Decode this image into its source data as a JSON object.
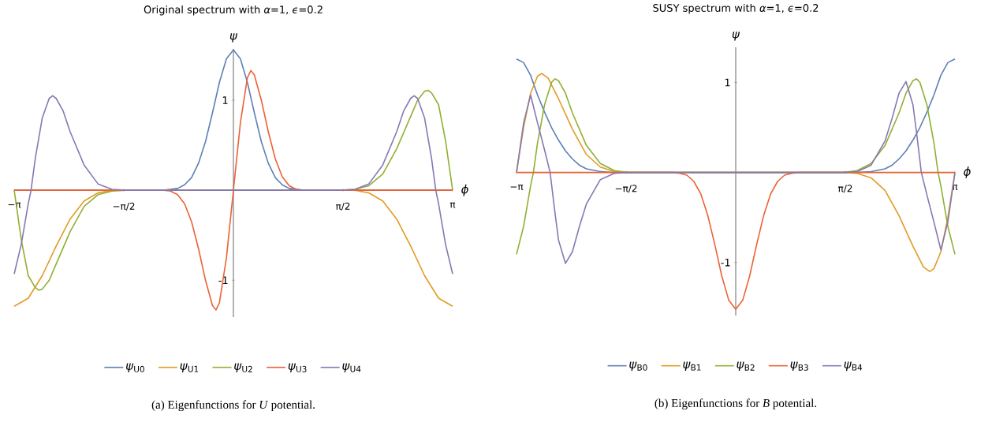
{
  "chart_data": [
    {
      "type": "line",
      "title": "Original spectrum with *α*=1, *ϵ*=0.2",
      "xlabel": "*ϕ*",
      "ylabel": "*ψ*",
      "xlim": [
        -3.1416,
        3.1416
      ],
      "ylim": [
        -1.41,
        1.57
      ],
      "xticks": [
        {
          "value": -3.1416,
          "label": "−π"
        },
        {
          "value": -1.5708,
          "label": "−π/2"
        },
        {
          "value": 1.5708,
          "label": "π/2"
        },
        {
          "value": 3.1416,
          "label": "π"
        }
      ],
      "yticks": [
        -1,
        1
      ],
      "legend": "bottom",
      "grid": false,
      "annotations": [
        "(a) Eigenfunctions for *U* potential."
      ],
      "series": [
        {
          "name": "*ψ*$_{U0}$",
          "color": "#5e81b5",
          "x": [
            -3.1416,
            -1.0,
            -0.8,
            -0.7,
            -0.6,
            -0.5,
            -0.4,
            -0.3,
            -0.2,
            -0.1,
            0,
            0.1,
            0.2,
            0.3,
            0.4,
            0.5,
            0.6,
            0.7,
            0.8,
            1.0,
            3.1416
          ],
          "values": [
            0,
            0,
            0.02,
            0.06,
            0.14,
            0.3,
            0.54,
            0.86,
            1.2,
            1.46,
            1.56,
            1.46,
            1.2,
            0.86,
            0.54,
            0.3,
            0.14,
            0.06,
            0.02,
            0,
            0
          ]
        },
        {
          "name": "*ψ*$_{U1}$",
          "color": "#e19c24",
          "x": [
            -3.1416,
            -2.94,
            -2.74,
            -2.54,
            -2.34,
            -2.14,
            -1.94,
            -1.74,
            1.74,
            1.94,
            2.14,
            2.34,
            2.54,
            2.74,
            2.94,
            3.1416
          ],
          "values": [
            -1.29,
            -1.2,
            -0.95,
            -0.62,
            -0.32,
            -0.12,
            -0.03,
            0,
            0,
            -0.03,
            -0.12,
            -0.32,
            -0.62,
            -0.95,
            -1.2,
            -1.29
          ]
        },
        {
          "name": "*ψ*$_{U2}$",
          "color": "#8fb032",
          "x": [
            -3.1416,
            -3.04,
            -2.94,
            -2.84,
            -2.79,
            -2.74,
            -2.64,
            -2.54,
            -2.34,
            -2.14,
            -1.94,
            -1.74,
            -1.54,
            1.54,
            1.74,
            1.94,
            2.14,
            2.34,
            2.54,
            2.64,
            2.74,
            2.79,
            2.84,
            2.94,
            3.04,
            3.1416
          ],
          "values": [
            0,
            -0.55,
            -0.95,
            -1.08,
            -1.11,
            -1.1,
            -1.0,
            -0.82,
            -0.46,
            -0.18,
            -0.05,
            -0.01,
            0,
            0,
            0.01,
            0.05,
            0.18,
            0.46,
            0.82,
            1.0,
            1.1,
            1.11,
            1.08,
            0.95,
            0.55,
            0
          ]
        },
        {
          "name": "*ψ*$_{U3}$",
          "color": "#eb6235",
          "x": [
            -3.1416,
            -1.0,
            -0.9,
            -0.8,
            -0.7,
            -0.6,
            -0.5,
            -0.4,
            -0.3,
            -0.25,
            -0.2,
            -0.1,
            0,
            0.1,
            0.2,
            0.25,
            0.3,
            0.4,
            0.5,
            0.6,
            0.7,
            0.8,
            0.9,
            1.0,
            3.1416
          ],
          "values": [
            0,
            0,
            -0.01,
            -0.05,
            -0.15,
            -0.35,
            -0.65,
            -1.0,
            -1.28,
            -1.33,
            -1.25,
            -0.75,
            0,
            0.75,
            1.25,
            1.33,
            1.28,
            1.0,
            0.65,
            0.35,
            0.15,
            0.05,
            0.01,
            0,
            0
          ]
        },
        {
          "name": "*ψ*$_{U4}$",
          "color": "#8778b3",
          "x": [
            -3.1416,
            -3.04,
            -2.94,
            -2.9,
            -2.84,
            -2.74,
            -2.64,
            -2.59,
            -2.54,
            -2.44,
            -2.34,
            -2.14,
            -1.94,
            -1.74,
            -1.54,
            1.54,
            1.74,
            1.94,
            2.14,
            2.34,
            2.44,
            2.54,
            2.59,
            2.64,
            2.74,
            2.84,
            2.9,
            2.94,
            3.04,
            3.1416
          ],
          "values": [
            -0.93,
            -0.6,
            -0.15,
            0,
            0.35,
            0.8,
            1.02,
            1.05,
            1.02,
            0.88,
            0.65,
            0.28,
            0.07,
            0.01,
            0,
            0,
            0.01,
            0.07,
            0.28,
            0.65,
            0.88,
            1.02,
            1.05,
            1.02,
            0.8,
            0.35,
            0,
            -0.15,
            -0.6,
            -0.93
          ]
        }
      ]
    },
    {
      "type": "line",
      "title": "SUSY spectrum with *α*=1, *ϵ*=0.2",
      "xlabel": "*ϕ*",
      "ylabel": "*ψ*",
      "xlim": [
        -3.1416,
        3.1416
      ],
      "ylim": [
        -1.59,
        1.39
      ],
      "xticks": [
        {
          "value": -3.1416,
          "label": "−π"
        },
        {
          "value": -1.5708,
          "label": "−π/2"
        },
        {
          "value": 1.5708,
          "label": "π/2"
        },
        {
          "value": 3.1416,
          "label": "π"
        }
      ],
      "yticks": [
        -1,
        1
      ],
      "legend": "bottom",
      "grid": false,
      "annotations": [
        "(b) Eigenfunctions for *B* potential."
      ],
      "series": [
        {
          "name": "*ψ*$_{B0}$",
          "color": "#5e81b5",
          "x": [
            -3.1416,
            -3.04,
            -2.94,
            -2.84,
            -2.74,
            -2.64,
            -2.54,
            -2.44,
            -2.34,
            -2.24,
            -2.14,
            -1.94,
            -1.74,
            1.74,
            1.94,
            2.14,
            2.24,
            2.34,
            2.44,
            2.54,
            2.64,
            2.74,
            2.84,
            2.94,
            3.04,
            3.1416
          ],
          "values": [
            1.26,
            1.22,
            1.08,
            0.86,
            0.67,
            0.5,
            0.36,
            0.24,
            0.15,
            0.08,
            0.04,
            0.01,
            0,
            0,
            0.01,
            0.04,
            0.08,
            0.15,
            0.24,
            0.36,
            0.5,
            0.67,
            0.86,
            1.08,
            1.22,
            1.26
          ]
        },
        {
          "name": "*ψ*$_{B1}$",
          "color": "#e19c24",
          "x": [
            -3.1416,
            -3.04,
            -2.94,
            -2.84,
            -2.78,
            -2.69,
            -2.54,
            -2.34,
            -2.14,
            -1.94,
            -1.74,
            -1.54,
            1.54,
            1.74,
            1.94,
            2.14,
            2.34,
            2.54,
            2.69,
            2.78,
            2.84,
            2.94,
            3.04,
            3.1416
          ],
          "values": [
            0,
            0.5,
            0.88,
            1.07,
            1.1,
            1.05,
            0.82,
            0.48,
            0.2,
            0.06,
            0.01,
            0,
            0,
            -0.01,
            -0.06,
            -0.2,
            -0.48,
            -0.82,
            -1.05,
            -1.1,
            -1.07,
            -0.88,
            -0.5,
            0
          ]
        },
        {
          "name": "*ψ*$_{B2}$",
          "color": "#8fb032",
          "x": [
            -3.1416,
            -3.04,
            -2.94,
            -2.9,
            -2.84,
            -2.74,
            -2.64,
            -2.59,
            -2.54,
            -2.44,
            -2.34,
            -2.14,
            -1.94,
            -1.74,
            -1.54,
            1.54,
            1.74,
            1.94,
            2.14,
            2.34,
            2.44,
            2.54,
            2.59,
            2.64,
            2.74,
            2.84,
            2.9,
            2.94,
            3.04,
            3.1416
          ],
          "values": [
            -0.91,
            -0.6,
            -0.15,
            0,
            0.33,
            0.75,
            1.0,
            1.04,
            1.02,
            0.88,
            0.66,
            0.3,
            0.1,
            0.02,
            0,
            0,
            0.02,
            0.1,
            0.3,
            0.66,
            0.88,
            1.02,
            1.04,
            1.0,
            0.75,
            0.33,
            0,
            -0.15,
            -0.6,
            -0.91
          ]
        },
        {
          "name": "*ψ*$_{B3}$",
          "color": "#eb6235",
          "x": [
            -3.1416,
            -0.9,
            -0.8,
            -0.7,
            -0.6,
            -0.5,
            -0.4,
            -0.3,
            -0.2,
            -0.1,
            0,
            0.1,
            0.2,
            0.3,
            0.4,
            0.5,
            0.6,
            0.7,
            0.8,
            0.9,
            3.1416
          ],
          "values": [
            0,
            0,
            -0.01,
            -0.03,
            -0.1,
            -0.24,
            -0.48,
            -0.8,
            -1.15,
            -1.42,
            -1.52,
            -1.42,
            -1.15,
            -0.8,
            -0.48,
            -0.24,
            -0.1,
            -0.03,
            -0.01,
            0,
            0
          ]
        },
        {
          "name": "*ψ*$_{B4}$",
          "color": "#8778b3",
          "x": [
            -3.1416,
            -3.04,
            -2.94,
            -2.84,
            -2.74,
            -2.66,
            -2.59,
            -2.54,
            -2.44,
            -2.34,
            -2.24,
            -2.14,
            -1.94,
            -1.74,
            -1.54,
            1.54,
            1.74,
            1.94,
            2.14,
            2.24,
            2.34,
            2.44,
            2.54,
            2.59,
            2.66,
            2.74,
            2.84,
            2.94,
            3.04,
            3.1416
          ],
          "values": [
            0,
            0.55,
            0.86,
            0.55,
            0.25,
            0,
            -0.45,
            -0.75,
            -1.01,
            -0.88,
            -0.6,
            -0.35,
            -0.08,
            -0.01,
            0,
            0,
            0.01,
            0.08,
            0.35,
            0.6,
            0.88,
            1.01,
            0.75,
            0.45,
            0,
            -0.25,
            -0.55,
            -0.86,
            -0.55,
            0
          ]
        }
      ]
    }
  ]
}
